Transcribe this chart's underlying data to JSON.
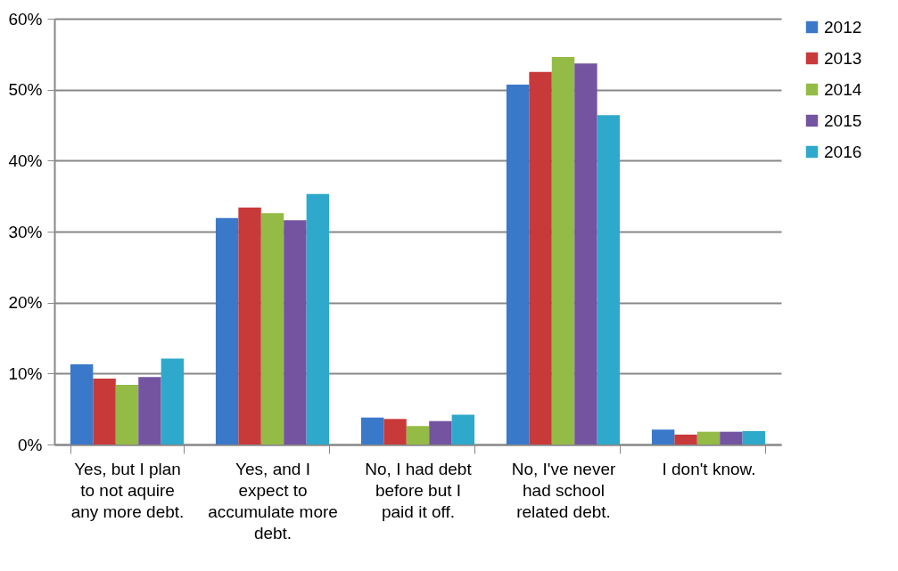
{
  "chart_data": {
    "type": "bar",
    "categories": [
      "Yes, but I plan to not aquire any more debt.",
      "Yes, and I expect to accumulate more debt.",
      "No, I had debt before but I paid it off.",
      "No, I've never had school related debt.",
      "I don't know."
    ],
    "series": [
      {
        "name": "2012",
        "color": "#3a78c9",
        "values": [
          11.3,
          31.9,
          3.8,
          50.7,
          2.1
        ]
      },
      {
        "name": "2013",
        "color": "#c8393a",
        "values": [
          9.3,
          33.4,
          3.6,
          52.5,
          1.4
        ]
      },
      {
        "name": "2014",
        "color": "#94bb45",
        "values": [
          8.4,
          32.6,
          2.6,
          54.6,
          1.8
        ]
      },
      {
        "name": "2015",
        "color": "#7453a0",
        "values": [
          9.5,
          31.6,
          3.3,
          53.7,
          1.8
        ]
      },
      {
        "name": "2016",
        "color": "#2fa9cb",
        "values": [
          12.1,
          35.3,
          4.2,
          46.4,
          1.9
        ]
      }
    ],
    "ylim": [
      0,
      60
    ],
    "yticks": [
      {
        "value": 0,
        "label": "0%"
      },
      {
        "value": 10,
        "label": "10%"
      },
      {
        "value": 20,
        "label": "20%"
      },
      {
        "value": 30,
        "label": "30%"
      },
      {
        "value": 40,
        "label": "40%"
      },
      {
        "value": 50,
        "label": "50%"
      },
      {
        "value": 60,
        "label": "60%"
      }
    ],
    "grid": "y",
    "legend": "right"
  }
}
